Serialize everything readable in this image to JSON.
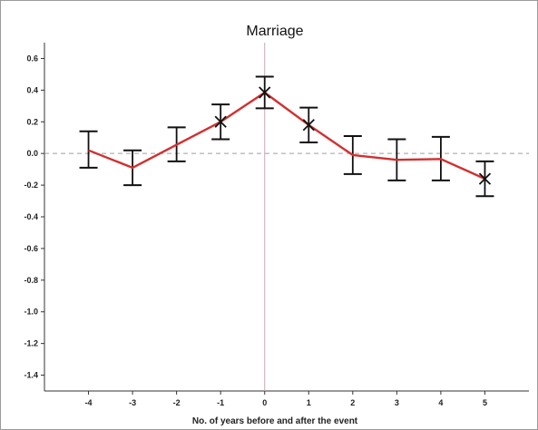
{
  "chart_data": {
    "type": "line",
    "title": "Marriage",
    "xlabel": "No. of years before and after the event",
    "ylabel": "",
    "xlim": [
      -5,
      6
    ],
    "ylim": [
      -1.5,
      0.7
    ],
    "x_ticks": [
      -4,
      -3,
      -2,
      -1,
      0,
      1,
      2,
      3,
      4,
      5
    ],
    "x_tick_labels": [
      "-4",
      "-3",
      "-2",
      "-1",
      "0",
      "1",
      "2",
      "3",
      "4",
      "5"
    ],
    "y_ticks": [
      0.6,
      0.4,
      0.2,
      0.0,
      -0.2,
      -0.4,
      -0.6,
      -0.8,
      -1.0,
      -1.2,
      -1.4
    ],
    "y_tick_labels": [
      "0.6",
      "0.4",
      "0.2",
      "0.0",
      "-0.2",
      "-0.4",
      "-0.6",
      "-0.8",
      "-1.0",
      "-1.2",
      "-1.4"
    ],
    "reference_line_y": 0.0,
    "reference_line_x": 0,
    "grid": false,
    "colors": {
      "line": "#d32f2f",
      "errorbar": "#111111",
      "reference": "#9e9e9e",
      "vline": "#c9a8b0"
    },
    "series": [
      {
        "x": [
          -4,
          -3,
          -2,
          -1,
          0,
          1,
          2,
          3,
          4,
          5
        ],
        "y": [
          0.02,
          -0.09,
          0.055,
          0.2,
          0.385,
          0.18,
          -0.01,
          -0.04,
          -0.035,
          -0.16
        ],
        "lower": [
          -0.09,
          -0.2,
          -0.05,
          0.09,
          0.285,
          0.07,
          -0.13,
          -0.17,
          -0.17,
          -0.27
        ],
        "upper": [
          0.14,
          0.02,
          0.165,
          0.31,
          0.485,
          0.29,
          0.11,
          0.09,
          0.105,
          -0.05
        ],
        "markers": [
          false,
          false,
          false,
          true,
          true,
          true,
          false,
          false,
          false,
          true
        ]
      }
    ]
  }
}
